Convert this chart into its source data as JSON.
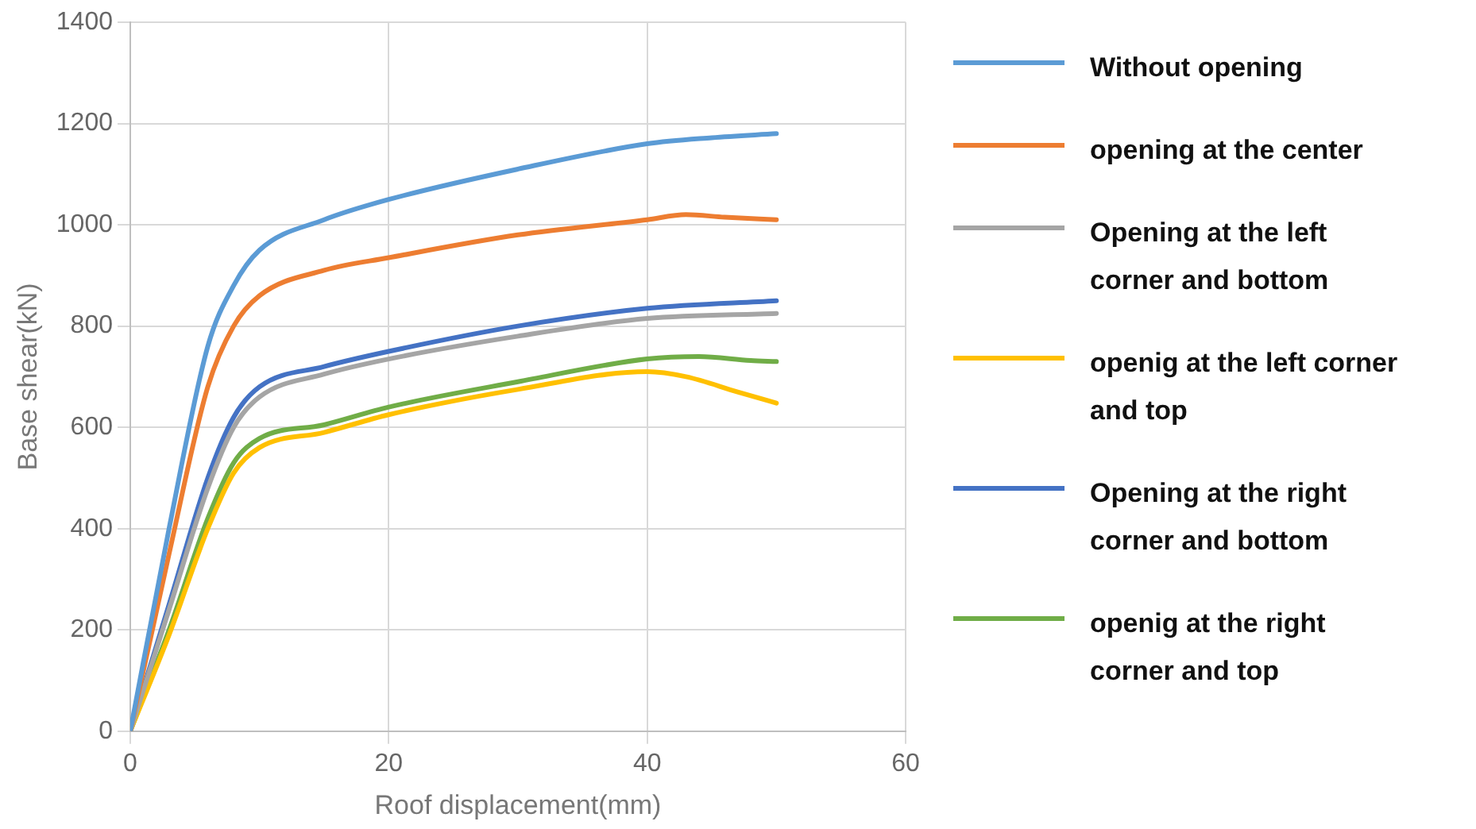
{
  "chart_data": {
    "type": "line",
    "xlabel": "Roof displacement(mm)",
    "ylabel": "Base shear(kN)",
    "xlim": [
      0,
      60
    ],
    "xticks": [
      0,
      20,
      40,
      60
    ],
    "ylim": [
      0,
      1400
    ],
    "yticks": [
      0,
      200,
      400,
      600,
      800,
      1000,
      1200,
      1400
    ],
    "grid": true,
    "legend": "right",
    "marker": "none",
    "line_style": "solid",
    "series": [
      {
        "name": "Without opening",
        "color": "#5b9bd5",
        "x": [
          0,
          3,
          6,
          8,
          10,
          15,
          20,
          30,
          40,
          45,
          50
        ],
        "values": [
          0,
          400,
          760,
          880,
          950,
          1010,
          1050,
          1110,
          1160,
          1172,
          1180
        ]
      },
      {
        "name": "opening at the center",
        "color": "#ed7d31",
        "x": [
          0,
          3,
          6,
          8,
          10,
          15,
          20,
          30,
          40,
          43,
          46,
          50
        ],
        "values": [
          0,
          350,
          680,
          800,
          860,
          910,
          935,
          980,
          1010,
          1020,
          1015,
          1010
        ]
      },
      {
        "name": "Opening at the left corner and bottom",
        "color": "#a5a5a5",
        "x": [
          0,
          3,
          6,
          8,
          10,
          15,
          20,
          30,
          40,
          50
        ],
        "values": [
          0,
          240,
          480,
          600,
          660,
          705,
          735,
          780,
          815,
          825
        ]
      },
      {
        "name": "openig at the left corner and top",
        "color": "#ffc000",
        "x": [
          0,
          3,
          6,
          8,
          10,
          15,
          20,
          30,
          40,
          43,
          47,
          50
        ],
        "values": [
          0,
          190,
          400,
          510,
          560,
          590,
          625,
          675,
          710,
          700,
          670,
          648
        ]
      },
      {
        "name": "Opening at the right corner and bottom",
        "color": "#4472c4",
        "x": [
          0,
          3,
          6,
          8,
          10,
          15,
          20,
          30,
          40,
          50
        ],
        "values": [
          0,
          250,
          500,
          620,
          680,
          720,
          750,
          800,
          835,
          850
        ]
      },
      {
        "name": "openig at the right corner and top",
        "color": "#70ad47",
        "x": [
          0,
          3,
          6,
          8,
          10,
          15,
          20,
          30,
          40,
          44,
          48,
          50
        ],
        "values": [
          0,
          200,
          420,
          530,
          578,
          605,
          640,
          690,
          735,
          740,
          732,
          730
        ]
      }
    ]
  }
}
